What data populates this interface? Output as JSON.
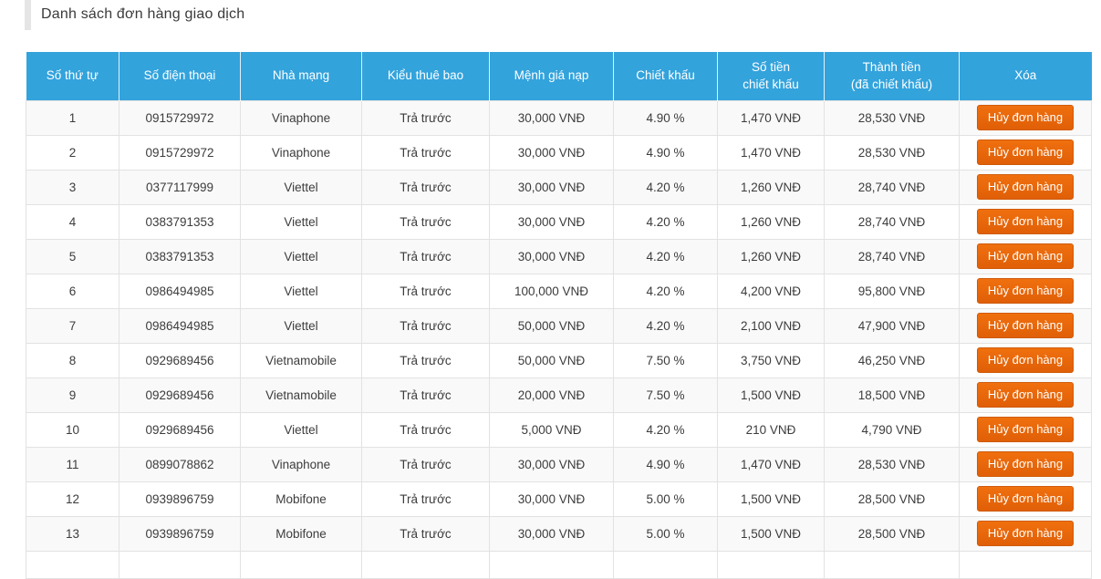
{
  "page": {
    "title": "Danh sách đơn hàng giao dịch"
  },
  "colors": {
    "header_blue": "#33a3dc",
    "button_orange": "#e8640c",
    "stripe_gray": "#f9f9f9",
    "border_gray": "#e2e2e2"
  },
  "table": {
    "columns": [
      {
        "lines": [
          "Số thứ tự"
        ]
      },
      {
        "lines": [
          "Số điện thoại"
        ]
      },
      {
        "lines": [
          "Nhà mạng"
        ]
      },
      {
        "lines": [
          "Kiểu thuê bao"
        ]
      },
      {
        "lines": [
          "Mệnh giá nạp"
        ]
      },
      {
        "lines": [
          "Chiết khấu"
        ]
      },
      {
        "lines": [
          "Số tiền",
          "chiết khấu"
        ]
      },
      {
        "lines": [
          "Thành tiền",
          "(đã chiết khấu)"
        ]
      },
      {
        "lines": [
          "Xóa"
        ]
      }
    ],
    "delete_button_label": "Hủy đơn hàng",
    "rows": [
      {
        "stt": "1",
        "phone": "0915729972",
        "carrier": "Vinaphone",
        "subscription_type": "Trả trước",
        "denomination": "30,000 VNĐ",
        "discount_percent": "4.90 %",
        "discount_amount": "1,470 VNĐ",
        "total": "28,530 VNĐ"
      },
      {
        "stt": "2",
        "phone": "0915729972",
        "carrier": "Vinaphone",
        "subscription_type": "Trả trước",
        "denomination": "30,000 VNĐ",
        "discount_percent": "4.90 %",
        "discount_amount": "1,470 VNĐ",
        "total": "28,530 VNĐ"
      },
      {
        "stt": "3",
        "phone": "0377117999",
        "carrier": "Viettel",
        "subscription_type": "Trả trước",
        "denomination": "30,000 VNĐ",
        "discount_percent": "4.20 %",
        "discount_amount": "1,260 VNĐ",
        "total": "28,740 VNĐ"
      },
      {
        "stt": "4",
        "phone": "0383791353",
        "carrier": "Viettel",
        "subscription_type": "Trả trước",
        "denomination": "30,000 VNĐ",
        "discount_percent": "4.20 %",
        "discount_amount": "1,260 VNĐ",
        "total": "28,740 VNĐ"
      },
      {
        "stt": "5",
        "phone": "0383791353",
        "carrier": "Viettel",
        "subscription_type": "Trả trước",
        "denomination": "30,000 VNĐ",
        "discount_percent": "4.20 %",
        "discount_amount": "1,260 VNĐ",
        "total": "28,740 VNĐ"
      },
      {
        "stt": "6",
        "phone": "0986494985",
        "carrier": "Viettel",
        "subscription_type": "Trả trước",
        "denomination": "100,000 VNĐ",
        "discount_percent": "4.20 %",
        "discount_amount": "4,200 VNĐ",
        "total": "95,800 VNĐ"
      },
      {
        "stt": "7",
        "phone": "0986494985",
        "carrier": "Viettel",
        "subscription_type": "Trả trước",
        "denomination": "50,000 VNĐ",
        "discount_percent": "4.20 %",
        "discount_amount": "2,100 VNĐ",
        "total": "47,900 VNĐ"
      },
      {
        "stt": "8",
        "phone": "0929689456",
        "carrier": "Vietnamobile",
        "subscription_type": "Trả trước",
        "denomination": "50,000 VNĐ",
        "discount_percent": "7.50 %",
        "discount_amount": "3,750 VNĐ",
        "total": "46,250 VNĐ"
      },
      {
        "stt": "9",
        "phone": "0929689456",
        "carrier": "Vietnamobile",
        "subscription_type": "Trả trước",
        "denomination": "20,000 VNĐ",
        "discount_percent": "7.50 %",
        "discount_amount": "1,500 VNĐ",
        "total": "18,500 VNĐ"
      },
      {
        "stt": "10",
        "phone": "0929689456",
        "carrier": "Viettel",
        "subscription_type": "Trả trước",
        "denomination": "5,000 VNĐ",
        "discount_percent": "4.20 %",
        "discount_amount": "210 VNĐ",
        "total": "4,790 VNĐ"
      },
      {
        "stt": "11",
        "phone": "0899078862",
        "carrier": "Vinaphone",
        "subscription_type": "Trả trước",
        "denomination": "30,000 VNĐ",
        "discount_percent": "4.90 %",
        "discount_amount": "1,470 VNĐ",
        "total": "28,530 VNĐ"
      },
      {
        "stt": "12",
        "phone": "0939896759",
        "carrier": "Mobifone",
        "subscription_type": "Trả trước",
        "denomination": "30,000 VNĐ",
        "discount_percent": "5.00 %",
        "discount_amount": "1,500 VNĐ",
        "total": "28,500 VNĐ"
      },
      {
        "stt": "13",
        "phone": "0939896759",
        "carrier": "Mobifone",
        "subscription_type": "Trả trước",
        "denomination": "30,000 VNĐ",
        "discount_percent": "5.00 %",
        "discount_amount": "1,500 VNĐ",
        "total": "28,500 VNĐ"
      }
    ]
  }
}
